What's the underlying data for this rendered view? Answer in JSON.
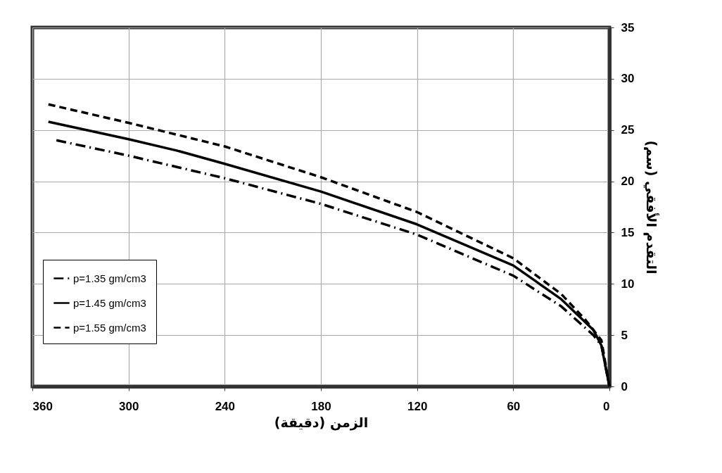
{
  "chart_data": {
    "type": "line",
    "xlabel": "الزمن (دقيقة)",
    "ylabel": "التقدم الأفقي (سم)",
    "xlim": [
      360,
      0
    ],
    "xticks": [
      360,
      300,
      240,
      180,
      120,
      60,
      0
    ],
    "ylim": [
      0,
      35
    ],
    "yticks": [
      0,
      5,
      10,
      15,
      20,
      25,
      30,
      35
    ],
    "grid": true,
    "legend": "left",
    "marker": "none",
    "series": [
      {
        "name": "p=1.35 gm/cm3",
        "color": "#000000",
        "line_style": "dashdot",
        "x": [
          345,
          300,
          240,
          180,
          120,
          60,
          30,
          10,
          5,
          0
        ],
        "values": [
          24.0,
          22.5,
          20.3,
          17.8,
          14.8,
          10.8,
          7.8,
          5.0,
          4.0,
          0
        ]
      },
      {
        "name": "p=1.45 gm/cm3",
        "color": "#000000",
        "line_style": "solid",
        "x": [
          350,
          300,
          270,
          240,
          180,
          120,
          60,
          30,
          10,
          5,
          0
        ],
        "values": [
          25.8,
          24.1,
          23.0,
          21.7,
          19.0,
          15.8,
          11.8,
          8.5,
          5.5,
          4.0,
          0
        ]
      },
      {
        "name": "p=1.55 gm/cm3",
        "color": "#000000",
        "line_style": "dashed",
        "x": [
          350,
          300,
          240,
          180,
          120,
          60,
          30,
          15,
          5,
          0
        ],
        "values": [
          27.5,
          25.7,
          23.4,
          20.4,
          17.0,
          12.5,
          9.0,
          6.5,
          4.5,
          0
        ]
      }
    ]
  }
}
